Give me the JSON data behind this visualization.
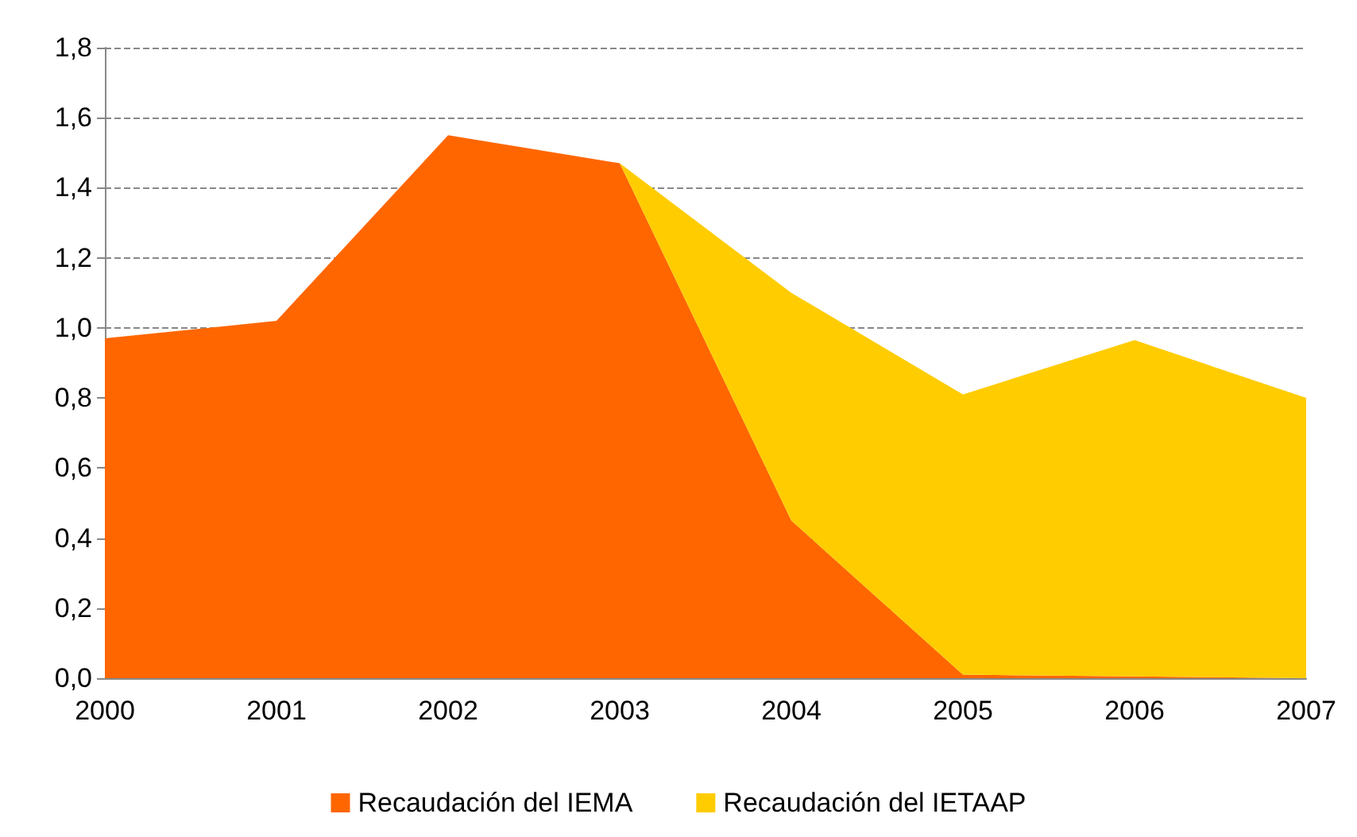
{
  "chart_data": {
    "type": "area",
    "stacked": true,
    "categories": [
      "2000",
      "2001",
      "2002",
      "2003",
      "2004",
      "2005",
      "2006",
      "2007"
    ],
    "series": [
      {
        "name": "Recaudación del IEMA",
        "color": "#ff6600",
        "values": [
          0.97,
          1.02,
          1.55,
          1.47,
          0.45,
          0.01,
          0.005,
          0
        ]
      },
      {
        "name": "Recaudación del IETAAP",
        "color": "#ffcc00",
        "values": [
          null,
          null,
          null,
          0,
          0.65,
          0.8,
          0.96,
          0.8
        ]
      }
    ],
    "ylim": [
      0,
      1.8
    ],
    "yticks": [
      {
        "value": 0,
        "label": "0,0"
      },
      {
        "value": 0.2,
        "label": "0,2"
      },
      {
        "value": 0.4,
        "label": "0,4"
      },
      {
        "value": 0.6,
        "label": "0,6"
      },
      {
        "value": 0.8,
        "label": "0,8"
      },
      {
        "value": 1,
        "label": "1,0"
      },
      {
        "value": 1.2,
        "label": "1,2"
      },
      {
        "value": 1.4,
        "label": "1,4"
      },
      {
        "value": 1.6,
        "label": "1,6"
      },
      {
        "value": 1.8,
        "label": "1,8"
      }
    ],
    "grid": "y",
    "legend": "bottom"
  }
}
